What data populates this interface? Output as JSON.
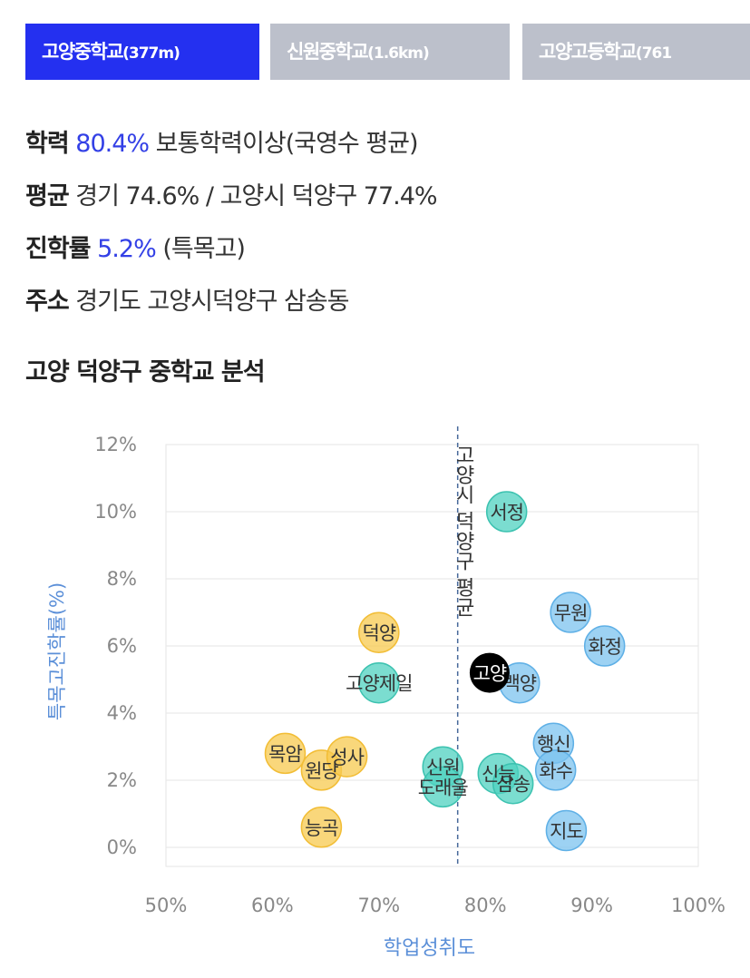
{
  "tabs": [
    {
      "label": "고양중학교",
      "sub": "(377m)",
      "active": true
    },
    {
      "label": "신원중학교",
      "sub": "(1.6km)",
      "active": false
    },
    {
      "label": "고양고등학교",
      "sub": "(761",
      "active": false
    }
  ],
  "info": {
    "achievement": {
      "label": "학력",
      "value": "80.4%",
      "desc": "보통학력이상(국영수 평균)"
    },
    "average": {
      "label": "평균",
      "text": "경기 74.6% / 고양시 덕양구 77.4%"
    },
    "advancement": {
      "label": "진학률",
      "value": "5.2%",
      "desc": "(특목고)"
    },
    "address": {
      "label": "주소",
      "text": "경기도 고양시덕양구 삼송동"
    }
  },
  "section_title": "고양 덕양구 중학교 분석",
  "colors": {
    "accent": "#2430f0",
    "highlight": "#3340e6",
    "yellow": "#f7c94f",
    "teal": "#4fd1c0",
    "blue": "#7cc3ef",
    "selected": "#000000",
    "axis_label": "#5b8fd8"
  },
  "chart_data": {
    "type": "scatter",
    "xlabel": "학업성취도",
    "ylabel": "특목고진학률(%)",
    "xlim": [
      50,
      100
    ],
    "ylim": [
      0,
      12
    ],
    "xticks": [
      "50%",
      "60%",
      "70%",
      "80%",
      "90%",
      "100%"
    ],
    "yticks": [
      "0%",
      "2%",
      "4%",
      "6%",
      "8%",
      "10%",
      "12%"
    ],
    "reference_line": {
      "x": 77.4,
      "label": "고양시 덕양구 평균"
    },
    "grid": true,
    "points": [
      {
        "name": "덕양",
        "x": 70.0,
        "y": 6.4,
        "group": "yellow"
      },
      {
        "name": "목암",
        "x": 61.2,
        "y": 2.8,
        "group": "yellow"
      },
      {
        "name": "원당",
        "x": 64.6,
        "y": 2.3,
        "group": "yellow"
      },
      {
        "name": "성사",
        "x": 67.0,
        "y": 2.7,
        "group": "yellow"
      },
      {
        "name": "능곡",
        "x": 64.6,
        "y": 0.6,
        "group": "yellow"
      },
      {
        "name": "고양제일",
        "x": 70.0,
        "y": 4.9,
        "group": "teal"
      },
      {
        "name": "서정",
        "x": 82.0,
        "y": 10.0,
        "group": "teal"
      },
      {
        "name": "신원",
        "x": 76.0,
        "y": 2.4,
        "group": "teal"
      },
      {
        "name": "도래울",
        "x": 76.0,
        "y": 1.8,
        "group": "teal"
      },
      {
        "name": "신능",
        "x": 81.2,
        "y": 2.2,
        "group": "teal"
      },
      {
        "name": "삼송",
        "x": 82.6,
        "y": 1.9,
        "group": "teal"
      },
      {
        "name": "무원",
        "x": 88.0,
        "y": 7.0,
        "group": "blue"
      },
      {
        "name": "화정",
        "x": 91.2,
        "y": 6.0,
        "group": "blue"
      },
      {
        "name": "행신",
        "x": 86.4,
        "y": 3.1,
        "group": "blue"
      },
      {
        "name": "화수",
        "x": 86.6,
        "y": 2.3,
        "group": "blue"
      },
      {
        "name": "지도",
        "x": 87.6,
        "y": 0.5,
        "group": "blue"
      },
      {
        "name": "백양",
        "x": 83.2,
        "y": 4.9,
        "group": "blue"
      },
      {
        "name": "고양",
        "x": 80.4,
        "y": 5.2,
        "group": "selected"
      }
    ]
  }
}
